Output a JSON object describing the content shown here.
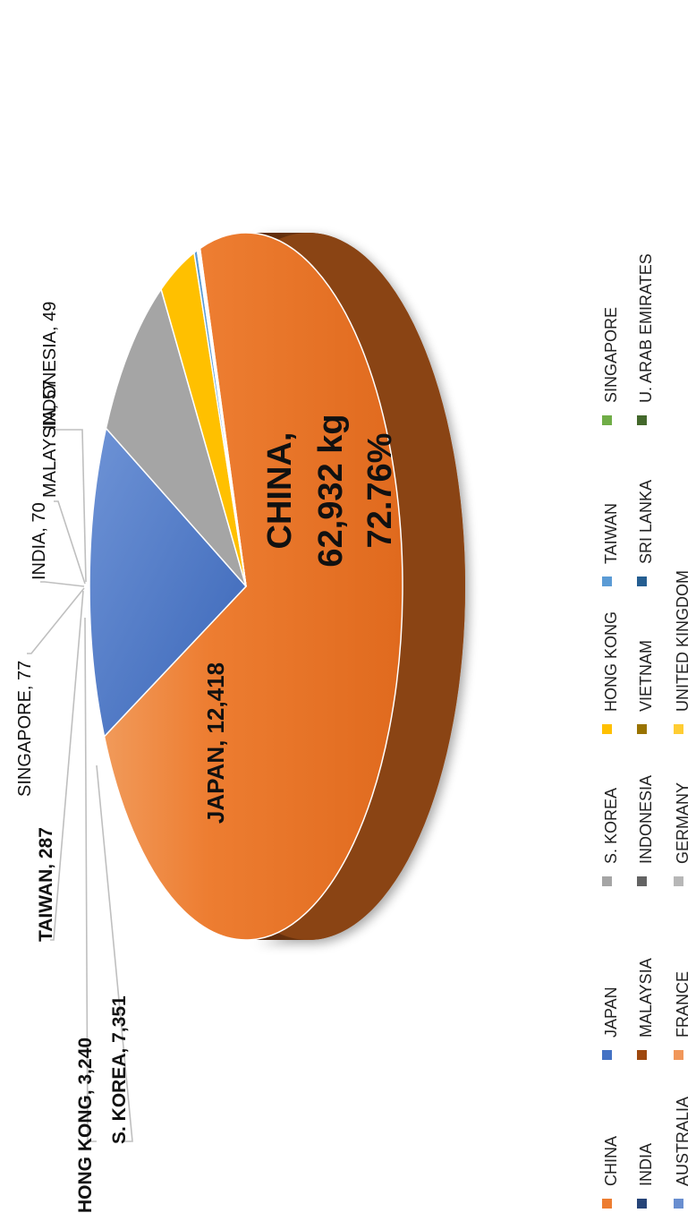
{
  "chart_data": {
    "type": "pie",
    "title": "",
    "unit": "kg",
    "slices": [
      {
        "name": "CHINA",
        "value": 62932,
        "color": "#ED7D31",
        "side_color": "#7A3A10"
      },
      {
        "name": "JAPAN",
        "value": 12418,
        "color": "#4472C4",
        "side_color": "#22396A"
      },
      {
        "name": "S. KOREA",
        "value": 7351,
        "color": "#A5A5A5",
        "side_color": "#5A5A5A"
      },
      {
        "name": "HONG KONG",
        "value": 3240,
        "color": "#FFC000",
        "side_color": "#8A6800"
      },
      {
        "name": "TAIWAN",
        "value": 287,
        "color": "#5B9BD5",
        "side_color": "#2E5275"
      },
      {
        "name": "SINGAPORE",
        "value": 77,
        "color": "#70AD47",
        "side_color": "#3A5C24"
      },
      {
        "name": "INDIA",
        "value": 70,
        "color": "#264478",
        "side_color": "#15274A"
      },
      {
        "name": "MALAYSIA",
        "value": 57,
        "color": "#9E480E",
        "side_color": "#5A2908"
      },
      {
        "name": "INDONESIA",
        "value": 49,
        "color": "#636363",
        "side_color": "#363636"
      }
    ],
    "data_labels": [
      {
        "text": "CHINA,",
        "bold": true
      },
      {
        "text": "62,932 kg",
        "bold": true
      },
      {
        "text": "72.76%",
        "bold": true
      },
      {
        "text": "JAPAN, 12,418",
        "bold": true
      },
      {
        "text": "S. KOREA, 7,351",
        "bold": true
      },
      {
        "text": "HONG KONG, 3,240",
        "bold": true
      },
      {
        "text": "TAIWAN, 287",
        "bold": true
      },
      {
        "text": "SINGAPORE, 77",
        "bold": false
      },
      {
        "text": "INDIA, 70",
        "bold": false
      },
      {
        "text": "MALAYSIA, 57",
        "bold": false
      },
      {
        "text": "INDONESIA, 49",
        "bold": false
      }
    ],
    "legend": {
      "position": "bottom",
      "entries": [
        {
          "name": "CHINA",
          "color": "#ED7D31"
        },
        {
          "name": "JAPAN",
          "color": "#4472C4"
        },
        {
          "name": "S. KOREA",
          "color": "#A5A5A5"
        },
        {
          "name": "HONG KONG",
          "color": "#FFC000"
        },
        {
          "name": "TAIWAN",
          "color": "#5B9BD5"
        },
        {
          "name": "SINGAPORE",
          "color": "#70AD47"
        },
        {
          "name": "INDIA",
          "color": "#264478"
        },
        {
          "name": "MALAYSIA",
          "color": "#9E480E"
        },
        {
          "name": "INDONESIA",
          "color": "#636363"
        },
        {
          "name": "VIETNAM",
          "color": "#997300"
        },
        {
          "name": "SRI LANKA",
          "color": "#255E91"
        },
        {
          "name": "U. ARAB EMIRATES",
          "color": "#43682B"
        },
        {
          "name": "AUSTRALIA",
          "color": "#698ED0"
        },
        {
          "name": "FRANCE",
          "color": "#F1975A"
        },
        {
          "name": "GERMANY",
          "color": "#B7B7B7"
        },
        {
          "name": "UNITED KINGDOM",
          "color": "#FFCD33"
        }
      ]
    },
    "rotation": "image rotated 90 degrees counter-clockwise",
    "style": "3D pie"
  }
}
